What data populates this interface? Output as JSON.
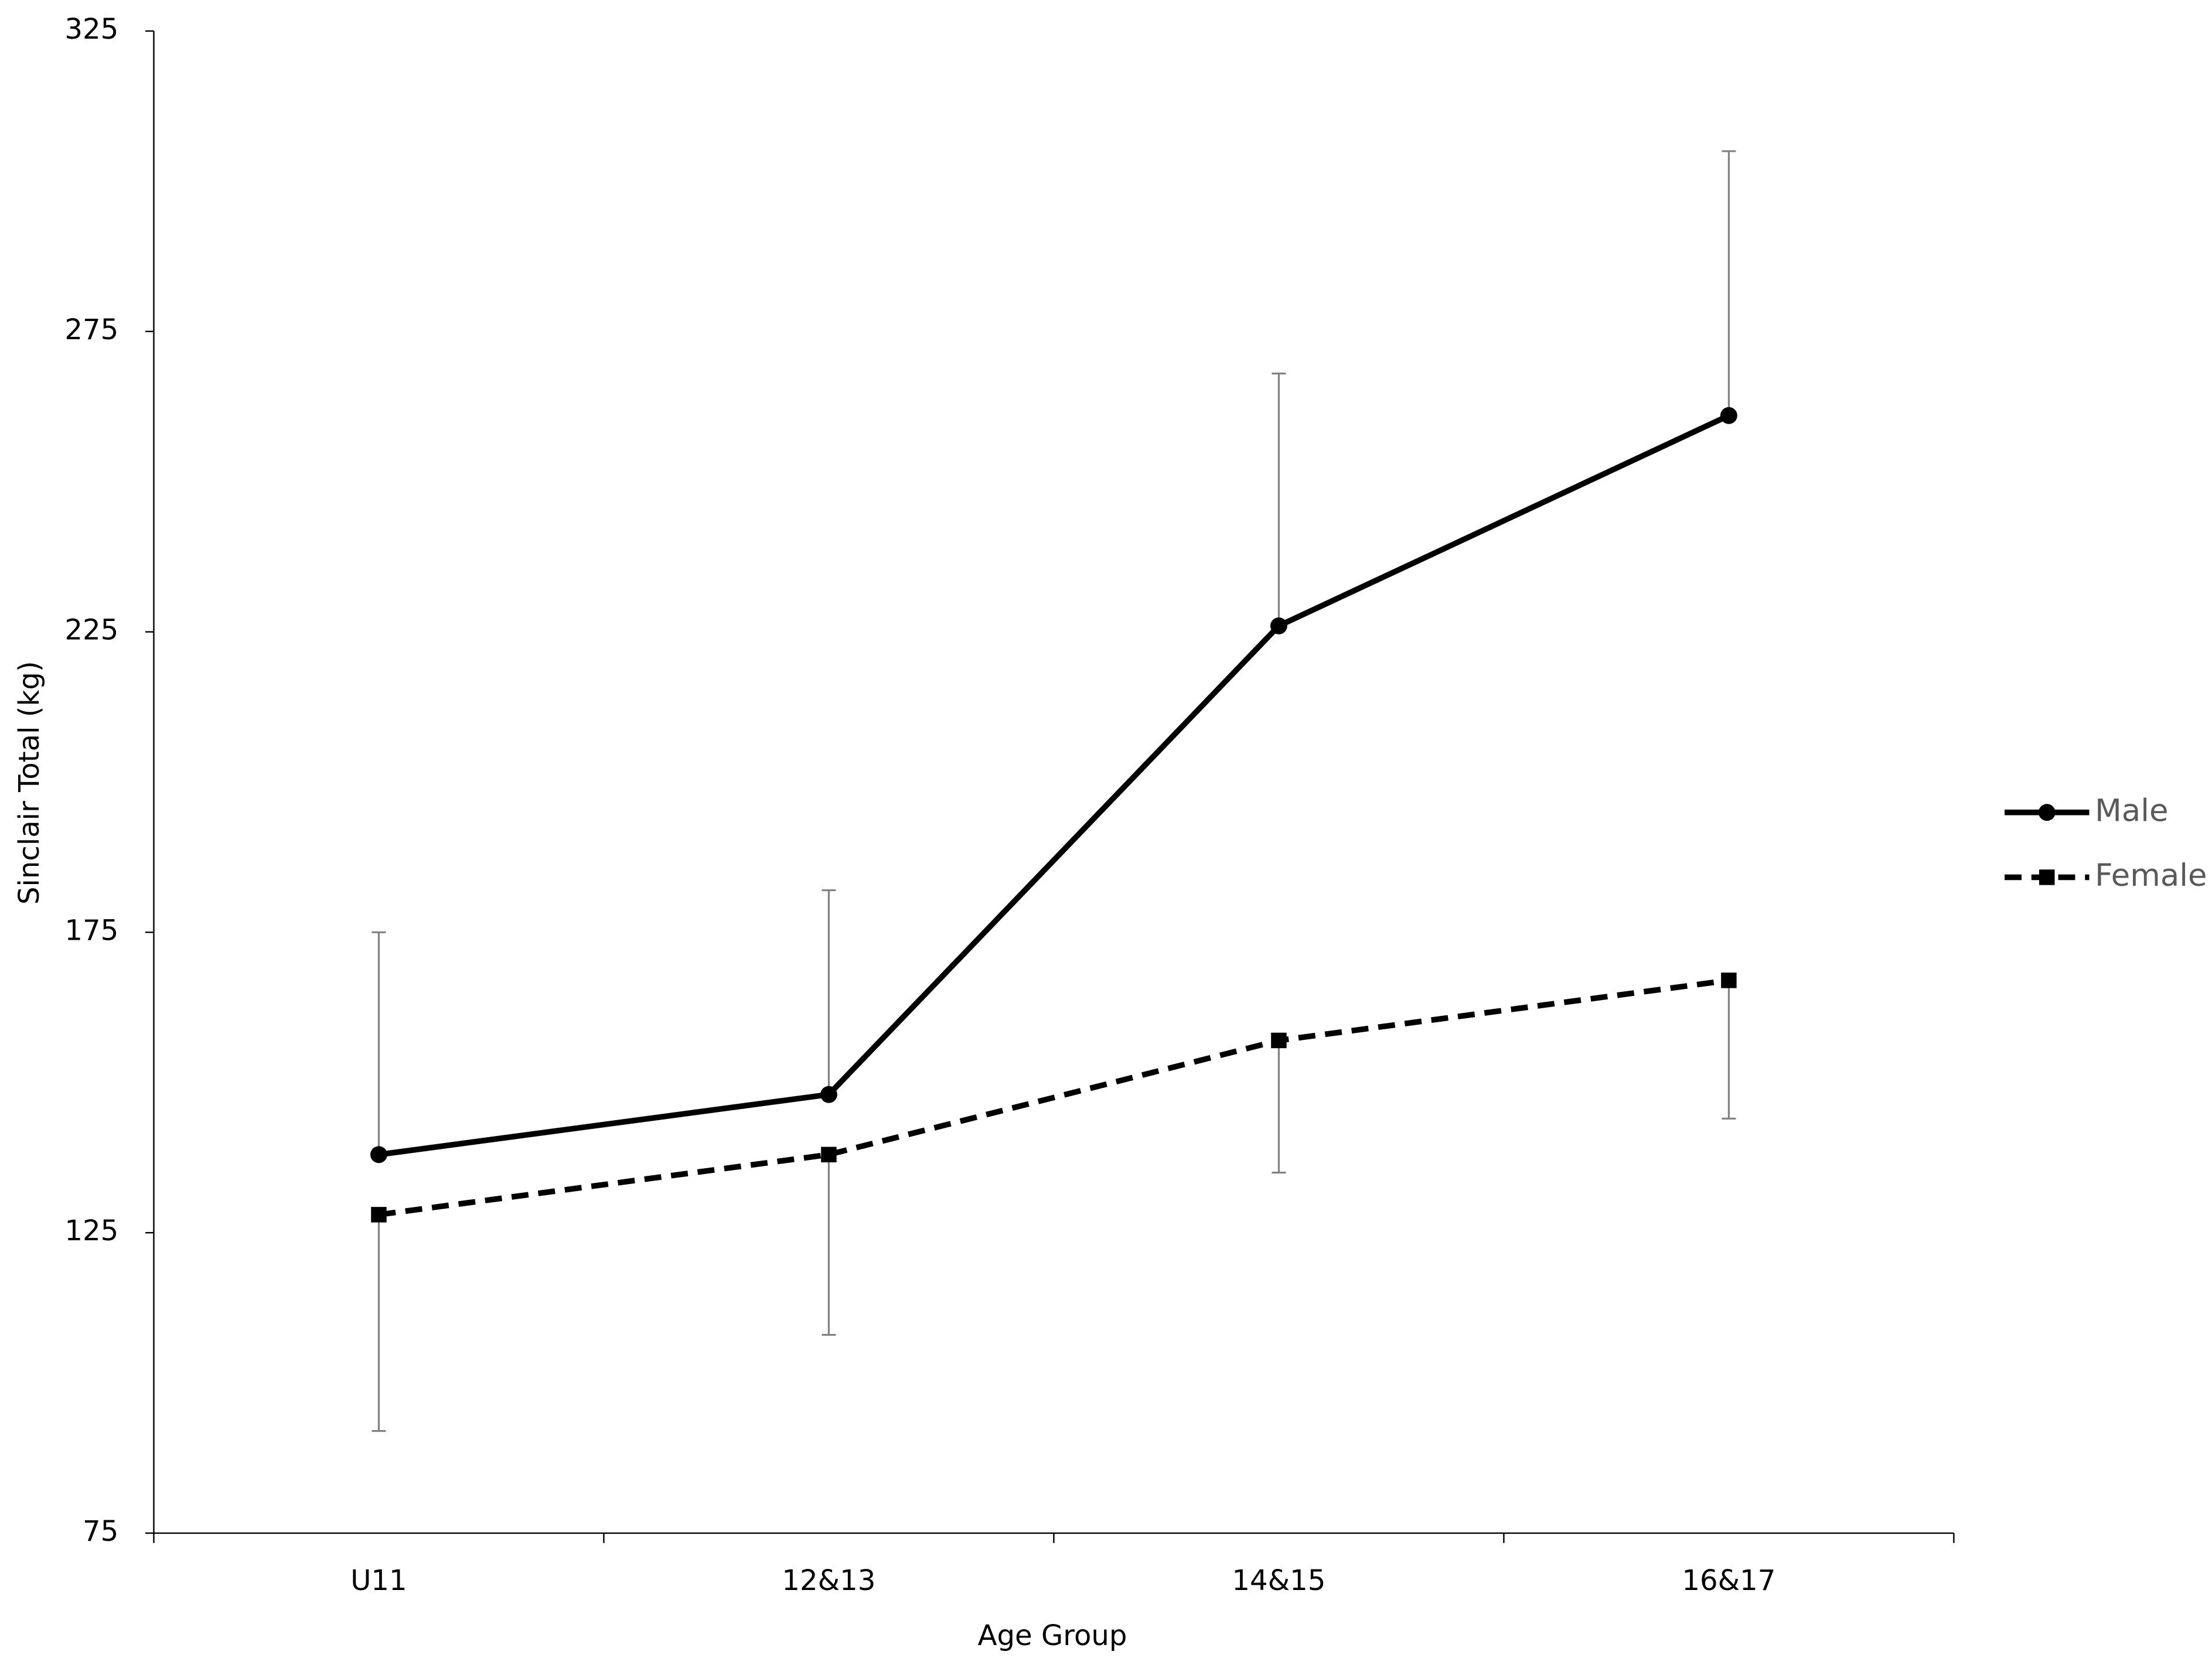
{
  "chart_data": {
    "type": "line",
    "x_label": "Age Group",
    "y_label": "Sinclair Total (kg)",
    "categories": [
      "U11",
      "12&13",
      "14&15",
      "16&17"
    ],
    "series": [
      {
        "name": "Male",
        "color": "#000000",
        "dash": false,
        "marker": "circle",
        "error_direction": "up",
        "values": [
          138,
          148,
          226,
          261
        ],
        "errors": [
          37,
          34,
          42,
          44
        ]
      },
      {
        "name": "Female",
        "color": "#000000",
        "dash": true,
        "marker": "square",
        "error_direction": "down",
        "values": [
          128,
          138,
          157,
          167
        ],
        "errors": [
          36,
          30,
          22,
          23
        ]
      }
    ],
    "ylim": [
      75,
      325
    ],
    "yticks": [
      75,
      125,
      175,
      225,
      275,
      325
    ],
    "legend": "right"
  }
}
